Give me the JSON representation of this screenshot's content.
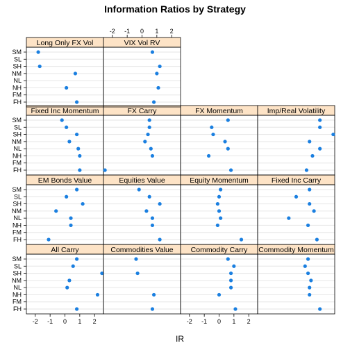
{
  "chart_data": {
    "type": "scatter",
    "title": "Information Ratios by Strategy",
    "xlabel": "IR",
    "ylabel": "",
    "xlim": [
      -2.6,
      2.6
    ],
    "x_ticks": [
      -2,
      -1,
      0,
      1,
      2
    ],
    "categories": [
      "SM",
      "SL",
      "SH",
      "NM",
      "NL",
      "NH",
      "FM",
      "FH"
    ],
    "layout": "4 rows x 4 columns, filled from bottom-left",
    "colors": {
      "point": "#1a7fe0",
      "strip": "#fde3c6",
      "gridline": "#e6e6e6"
    },
    "panels": [
      {
        "name": "All Carry",
        "values": {
          "SM": 0.8,
          "SL": 0.55,
          "SH": 2.5,
          "NM": 0.3,
          "NL": 0.15,
          "NH": 2.2,
          "FM": null,
          "FH": 0.8
        }
      },
      {
        "name": "Commodities Value",
        "values": {
          "SM": -0.4,
          "SL": null,
          "SH": -0.3,
          "NM": null,
          "NL": null,
          "NH": 0.8,
          "FM": null,
          "FH": 0.7
        }
      },
      {
        "name": "Commodity Carry",
        "values": {
          "SM": 0.6,
          "SL": 1.0,
          "SH": 0.8,
          "NM": 0.8,
          "NL": 0.8,
          "NH": 0.0,
          "FM": null,
          "FH": 1.1
        }
      },
      {
        "name": "Commodity Momentum",
        "values": {
          "SM": 0.8,
          "SL": 0.6,
          "SH": 0.8,
          "NM": 1.0,
          "NL": 0.9,
          "NH": 0.9,
          "FM": null,
          "FH": 1.6
        }
      },
      {
        "name": "EM Bonds Value",
        "values": {
          "SM": 0.8,
          "SL": 0.1,
          "SH": 1.2,
          "NM": -0.6,
          "NL": 0.4,
          "NH": 0.4,
          "FM": null,
          "FH": -1.1
        }
      },
      {
        "name": "Equities Value",
        "values": {
          "SM": -0.2,
          "SL": 0.5,
          "SH": 1.2,
          "NM": 0.3,
          "NL": 0.7,
          "NH": 0.7,
          "FM": null,
          "FH": 1.2
        }
      },
      {
        "name": "Equity Momentum",
        "values": {
          "SM": 0.1,
          "SL": 0.0,
          "SH": -0.1,
          "NM": 0.0,
          "NL": 0.1,
          "NH": -0.1,
          "FM": null,
          "FH": 1.5
        }
      },
      {
        "name": "Fixed Inc Carry",
        "values": {
          "SM": 0.9,
          "SL": 0.0,
          "SH": 0.9,
          "NM": 1.2,
          "NL": -0.5,
          "NH": 0.8,
          "FM": null,
          "FH": 1.4
        }
      },
      {
        "name": "Fixed Inc Momentum",
        "values": {
          "SM": -0.2,
          "SL": 0.1,
          "SH": 0.8,
          "NM": 0.3,
          "NL": 0.9,
          "NH": 1.0,
          "FM": null,
          "FH": 1.0
        }
      },
      {
        "name": "FX Carry",
        "values": {
          "SM": 0.5,
          "SL": 0.5,
          "SH": 0.4,
          "NM": 0.2,
          "NL": 0.6,
          "NH": 0.7,
          "FM": null,
          "FH": -2.5
        }
      },
      {
        "name": "FX Momentum",
        "values": {
          "SM": 0.6,
          "SL": -0.5,
          "SH": -0.4,
          "NM": 0.4,
          "NL": 0.6,
          "NH": -0.7,
          "FM": null,
          "FH": 0.8
        }
      },
      {
        "name": "Imp/Real Volatility",
        "values": {
          "SM": 1.6,
          "SL": 1.6,
          "SH": 2.5,
          "NM": 0.9,
          "NL": 1.6,
          "NH": 1.1,
          "FM": null,
          "FH": 0.7
        }
      },
      {
        "name": "Long Only FX Vol",
        "values": {
          "SM": -1.8,
          "SL": null,
          "SH": -1.7,
          "NM": 0.7,
          "NL": null,
          "NH": 0.1,
          "FM": null,
          "FH": 0.8
        }
      },
      {
        "name": "VIX Vol RV",
        "values": {
          "SM": 0.7,
          "SL": null,
          "SH": 1.2,
          "NM": 1.0,
          "NL": null,
          "NH": 1.1,
          "FM": null,
          "FH": 0.8
        }
      }
    ]
  }
}
